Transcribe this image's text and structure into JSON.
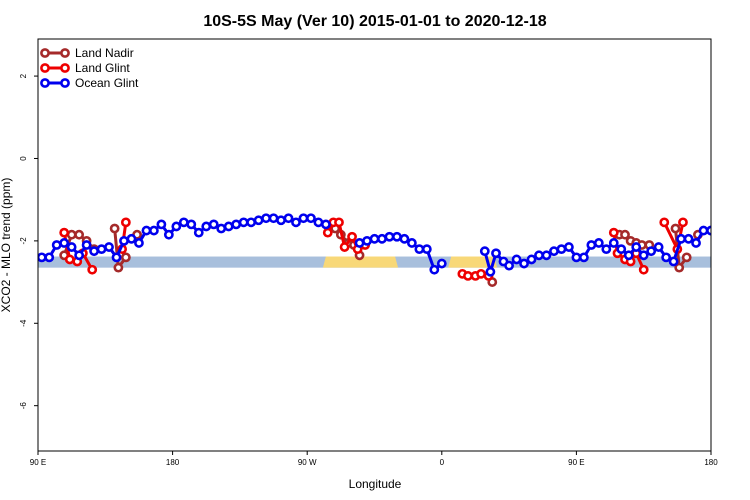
{
  "chart_data": {
    "type": "line",
    "title": "10S-5S May (Ver 10)   2015-01-01 to 2020-12-18",
    "xlabel": "Longitude",
    "ylabel": "XCO2 - MLO trend (ppm)",
    "xlim": [
      90,
      450
    ],
    "ylim": [
      -7.1,
      2.9
    ],
    "x_ticks": [
      {
        "value": 90,
        "label": "90 E"
      },
      {
        "value": 162,
        "label": "180"
      },
      {
        "value": 234,
        "label": "90 W"
      },
      {
        "value": 306,
        "label": "0"
      },
      {
        "value": 378,
        "label": "90 E"
      },
      {
        "value": 450,
        "label": "180"
      }
    ],
    "y_ticks": [
      {
        "value": -6,
        "label": "-6"
      },
      {
        "value": -4,
        "label": "-4"
      },
      {
        "value": -2,
        "label": "-2"
      },
      {
        "value": 0,
        "label": "0"
      },
      {
        "value": 2,
        "label": "2"
      }
    ],
    "surface_band": {
      "y_range": [
        -2.65,
        -2.38
      ],
      "ocean_color": "#a8bfdc",
      "land_color": "#f8d878",
      "land_segments": [
        [
          244,
          281
        ],
        [
          311,
          334
        ]
      ]
    },
    "legend": {
      "position": "top-left",
      "entries": [
        {
          "label": "Land Nadir",
          "color": "#a52a2a"
        },
        {
          "label": "Land Glint",
          "color": "#ee0000"
        },
        {
          "label": "Ocean Glint",
          "color": "#0000ee"
        }
      ]
    },
    "series": [
      {
        "name": "Land Nadir",
        "color": "#a52a2a",
        "segments": [
          [
            [
              104,
              -2.35
            ],
            [
              108,
              -1.85
            ],
            [
              112,
              -1.85
            ],
            [
              116,
              -2.0
            ],
            [
              120,
              -2.2
            ]
          ],
          [
            [
              131,
              -1.7
            ],
            [
              133,
              -2.65
            ],
            [
              137,
              -2.4
            ]
          ],
          [
            [
              143,
              -1.85
            ]
          ],
          [
            [
              249,
              -1.7
            ],
            [
              252,
              -1.85
            ],
            [
              256,
              -2.05
            ],
            [
              259,
              -2.1
            ],
            [
              262,
              -2.35
            ]
          ],
          [
            [
              333,
              -3.0
            ]
          ],
          [
            [
              401,
              -1.85
            ],
            [
              404,
              -1.85
            ],
            [
              407,
              -2.0
            ],
            [
              410,
              -2.05
            ],
            [
              413,
              -2.1
            ],
            [
              417,
              -2.1
            ]
          ],
          [
            [
              431,
              -1.7
            ],
            [
              433,
              -2.65
            ],
            [
              437,
              -2.4
            ]
          ],
          [
            [
              443,
              -1.85
            ]
          ]
        ]
      },
      {
        "name": "Land Glint",
        "color": "#ee0000",
        "segments": [
          [
            [
              104,
              -1.8
            ],
            [
              107,
              -2.45
            ],
            [
              111,
              -2.5
            ],
            [
              114,
              -2.3
            ],
            [
              119,
              -2.7
            ]
          ],
          [
            [
              135,
              -2.2
            ],
            [
              137,
              -1.55
            ]
          ],
          [
            [
              245,
              -1.8
            ],
            [
              248,
              -1.55
            ],
            [
              251,
              -1.55
            ],
            [
              254,
              -2.15
            ],
            [
              258,
              -1.9
            ],
            [
              261,
              -2.2
            ],
            [
              265,
              -2.1
            ]
          ],
          [
            [
              317,
              -2.8
            ],
            [
              320,
              -2.85
            ],
            [
              324,
              -2.85
            ],
            [
              327,
              -2.8
            ],
            [
              331,
              -2.85
            ]
          ],
          [
            [
              398,
              -1.8
            ],
            [
              400,
              -2.3
            ],
            [
              404,
              -2.45
            ],
            [
              407,
              -2.5
            ],
            [
              410,
              -2.3
            ],
            [
              414,
              -2.7
            ]
          ],
          [
            [
              425,
              -1.55
            ],
            [
              432,
              -2.2
            ],
            [
              435,
              -1.55
            ]
          ]
        ]
      },
      {
        "name": "Ocean Glint",
        "color": "#0000ee",
        "segments": [
          [
            [
              92,
              -2.4
            ],
            [
              96,
              -2.4
            ],
            [
              100,
              -2.1
            ],
            [
              104,
              -2.05
            ],
            [
              108,
              -2.15
            ],
            [
              112,
              -2.35
            ],
            [
              116,
              -2.1
            ],
            [
              120,
              -2.25
            ],
            [
              124,
              -2.2
            ],
            [
              128,
              -2.15
            ],
            [
              132,
              -2.4
            ],
            [
              136,
              -2.0
            ],
            [
              140,
              -1.95
            ],
            [
              144,
              -2.05
            ],
            [
              148,
              -1.75
            ],
            [
              152,
              -1.75
            ],
            [
              156,
              -1.6
            ],
            [
              160,
              -1.85
            ],
            [
              164,
              -1.65
            ],
            [
              168,
              -1.55
            ],
            [
              172,
              -1.6
            ],
            [
              176,
              -1.8
            ],
            [
              180,
              -1.65
            ],
            [
              184,
              -1.6
            ],
            [
              188,
              -1.7
            ],
            [
              192,
              -1.65
            ],
            [
              196,
              -1.6
            ],
            [
              200,
              -1.55
            ],
            [
              204,
              -1.55
            ],
            [
              208,
              -1.5
            ],
            [
              212,
              -1.45
            ],
            [
              216,
              -1.45
            ],
            [
              220,
              -1.5
            ],
            [
              224,
              -1.45
            ],
            [
              228,
              -1.55
            ],
            [
              232,
              -1.45
            ],
            [
              236,
              -1.45
            ],
            [
              240,
              -1.55
            ],
            [
              244,
              -1.6
            ]
          ],
          [
            [
              262,
              -2.05
            ],
            [
              266,
              -2.0
            ],
            [
              270,
              -1.95
            ],
            [
              274,
              -1.95
            ],
            [
              278,
              -1.9
            ],
            [
              282,
              -1.9
            ],
            [
              286,
              -1.95
            ],
            [
              290,
              -2.05
            ],
            [
              294,
              -2.2
            ],
            [
              298,
              -2.2
            ],
            [
              302,
              -2.7
            ],
            [
              306,
              -2.55
            ]
          ],
          [
            [
              329,
              -2.25
            ],
            [
              332,
              -2.75
            ],
            [
              335,
              -2.3
            ],
            [
              339,
              -2.5
            ],
            [
              342,
              -2.6
            ],
            [
              346,
              -2.45
            ],
            [
              350,
              -2.55
            ],
            [
              354,
              -2.45
            ],
            [
              358,
              -2.35
            ],
            [
              362,
              -2.35
            ],
            [
              366,
              -2.25
            ],
            [
              370,
              -2.2
            ],
            [
              374,
              -2.15
            ],
            [
              378,
              -2.4
            ],
            [
              382,
              -2.4
            ],
            [
              386,
              -2.1
            ],
            [
              390,
              -2.05
            ],
            [
              394,
              -2.2
            ],
            [
              398,
              -2.05
            ],
            [
              402,
              -2.2
            ],
            [
              406,
              -2.35
            ],
            [
              410,
              -2.15
            ],
            [
              414,
              -2.35
            ],
            [
              418,
              -2.25
            ],
            [
              422,
              -2.15
            ],
            [
              426,
              -2.4
            ],
            [
              430,
              -2.5
            ],
            [
              434,
              -1.95
            ],
            [
              438,
              -1.95
            ],
            [
              442,
              -2.05
            ],
            [
              446,
              -1.75
            ],
            [
              450,
              -1.75
            ]
          ],
          [
            [
              450,
              -1.75
            ],
            [
              452,
              -1.6
            ],
            [
              456,
              -1.9
            ]
          ]
        ]
      }
    ]
  }
}
